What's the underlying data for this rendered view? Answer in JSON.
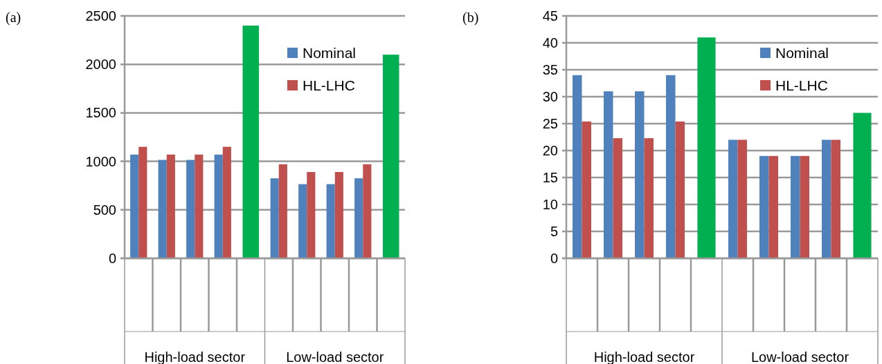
{
  "chart_data": [
    {
      "type": "bar",
      "title": "(a)",
      "categories": [
        null,
        null,
        null,
        null,
        null,
        null,
        null,
        null,
        null,
        null
      ],
      "series": [
        {
          "name": "Nominal",
          "color": "#4f81bd",
          "values": [
            1070,
            1015,
            1015,
            1070,
            null,
            825,
            765,
            765,
            825,
            null
          ]
        },
        {
          "name": "HL-LHC",
          "color": "#c0504d",
          "values": [
            1150,
            1070,
            1070,
            1150,
            null,
            970,
            890,
            890,
            970,
            null
          ]
        },
        {
          "color": "#00b050",
          "values": [
            null,
            null,
            null,
            null,
            2400,
            null,
            null,
            null,
            null,
            2100
          ]
        }
      ],
      "ylim": [
        0,
        2500
      ],
      "yticks": [
        0,
        500,
        1000,
        1500,
        2000,
        2500
      ],
      "grid": "y",
      "legend": "top right",
      "annotations": [
        "High-load sector",
        "Low-load sector"
      ]
    },
    {
      "type": "bar",
      "title": "(b)",
      "categories": [
        null,
        null,
        null,
        null,
        null,
        null,
        null,
        null,
        null,
        null
      ],
      "series": [
        {
          "name": "Nominal",
          "color": "#4f81bd",
          "values": [
            34,
            31,
            31,
            34,
            null,
            22,
            19,
            19,
            22,
            null
          ]
        },
        {
          "name": "HL-LHC",
          "color": "#c0504d",
          "values": [
            25.4,
            22.3,
            22.3,
            25.4,
            null,
            22,
            19,
            19,
            22,
            null
          ]
        },
        {
          "color": "#00b050",
          "values": [
            null,
            null,
            null,
            null,
            41,
            null,
            null,
            null,
            null,
            27
          ]
        }
      ],
      "ylim": [
        0,
        45
      ],
      "yticks": [
        0,
        5,
        10,
        15,
        20,
        25,
        30,
        35,
        40,
        45
      ],
      "grid": "y",
      "legend": "top right",
      "annotations": [
        "High-load sector",
        "Low-load sector"
      ]
    }
  ]
}
